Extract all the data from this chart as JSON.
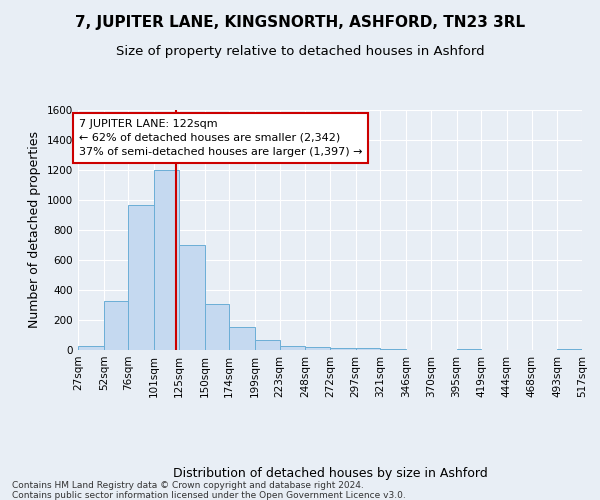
{
  "title": "7, JUPITER LANE, KINGSNORTH, ASHFORD, TN23 3RL",
  "subtitle": "Size of property relative to detached houses in Ashford",
  "xlabel": "Distribution of detached houses by size in Ashford",
  "ylabel": "Number of detached properties",
  "footnote": "Contains HM Land Registry data © Crown copyright and database right 2024.\nContains public sector information licensed under the Open Government Licence v3.0.",
  "bar_edges": [
    27,
    52,
    76,
    101,
    125,
    150,
    174,
    199,
    223,
    248,
    272,
    297,
    321,
    346,
    370,
    395,
    419,
    444,
    468,
    493,
    517
  ],
  "bar_heights": [
    30,
    325,
    965,
    1200,
    700,
    305,
    155,
    70,
    30,
    20,
    15,
    12,
    10,
    0,
    0,
    10,
    0,
    0,
    0,
    10
  ],
  "bar_color": "#c5d9f0",
  "bar_edge_color": "#6baed6",
  "property_size": 122,
  "property_label": "7 JUPITER LANE: 122sqm",
  "annotation_line1": "← 62% of detached houses are smaller (2,342)",
  "annotation_line2": "37% of semi-detached houses are larger (1,397) →",
  "annotation_box_color": "#ffffff",
  "annotation_box_edge_color": "#cc0000",
  "vline_color": "#cc0000",
  "ylim": [
    0,
    1600
  ],
  "yticks": [
    0,
    200,
    400,
    600,
    800,
    1000,
    1200,
    1400,
    1600
  ],
  "bg_color": "#e8eef5",
  "plot_bg_color": "#e8eef5",
  "grid_color": "#ffffff",
  "title_fontsize": 11,
  "subtitle_fontsize": 9.5,
  "axis_label_fontsize": 9,
  "tick_fontsize": 7.5,
  "annotation_fontsize": 8
}
